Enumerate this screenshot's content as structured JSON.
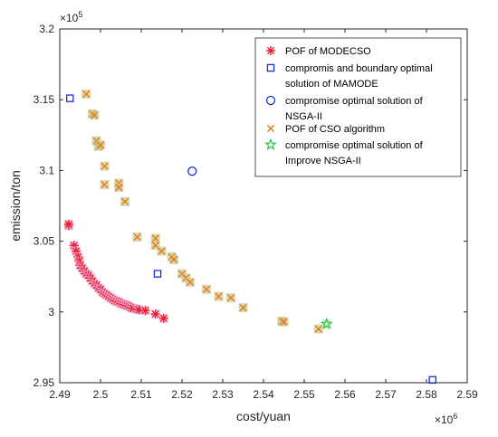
{
  "chart_data": {
    "type": "scatter",
    "title": "",
    "xlabel": "cost/yuan",
    "ylabel": "emission/ton",
    "x_multiplier_label": "×10^6",
    "y_multiplier_label": "×10^5",
    "x_exponent_base": "×10",
    "x_exponent_power": "6",
    "y_exponent_base": "×10",
    "y_exponent_power": "5",
    "xlim": [
      2.49,
      2.59
    ],
    "ylim": [
      2.95,
      3.2
    ],
    "x_ticks": [
      2.49,
      2.5,
      2.51,
      2.52,
      2.53,
      2.54,
      2.55,
      2.56,
      2.57,
      2.58,
      2.59
    ],
    "x_tick_labels": [
      "2.49",
      "2.5",
      "2.51",
      "2.52",
      "2.53",
      "2.54",
      "2.55",
      "2.56",
      "2.57",
      "2.58",
      "2.59"
    ],
    "y_ticks": [
      2.95,
      3.0,
      3.05,
      3.1,
      3.15,
      3.2
    ],
    "y_tick_labels": [
      "2.95",
      "3",
      "3.05",
      "3.1",
      "3.15",
      "3.2"
    ],
    "grid": false,
    "legend_position": "top-right",
    "series": [
      {
        "name": "POF of MODECSO",
        "marker": "asterisk",
        "color": "#e8202a",
        "highlight": "#f0b8e8",
        "points": [
          [
            2.4922,
            3.061
          ],
          [
            2.4922,
            3.062
          ],
          [
            2.4935,
            3.047
          ],
          [
            2.494,
            3.043
          ],
          [
            2.4945,
            3.039
          ],
          [
            2.4948,
            3.036
          ],
          [
            2.495,
            3.033
          ],
          [
            2.4955,
            3.031
          ],
          [
            2.496,
            3.029
          ],
          [
            2.4965,
            3.027
          ],
          [
            2.497,
            3.026
          ],
          [
            2.4975,
            3.024
          ],
          [
            2.498,
            3.022
          ],
          [
            2.4985,
            3.02
          ],
          [
            2.499,
            3.019
          ],
          [
            2.4995,
            3.017
          ],
          [
            2.5,
            3.016
          ],
          [
            2.5005,
            3.014
          ],
          [
            2.501,
            3.013
          ],
          [
            2.5015,
            3.012
          ],
          [
            2.502,
            3.011
          ],
          [
            2.5025,
            3.01
          ],
          [
            2.503,
            3.009
          ],
          [
            2.5035,
            3.008
          ],
          [
            2.504,
            3.0075
          ],
          [
            2.5045,
            3.007
          ],
          [
            2.505,
            3.006
          ],
          [
            2.5055,
            3.0055
          ],
          [
            2.506,
            3.005
          ],
          [
            2.5065,
            3.0045
          ],
          [
            2.507,
            3.004
          ],
          [
            2.5075,
            3.003
          ],
          [
            2.508,
            3.0025
          ],
          [
            2.509,
            3.002
          ],
          [
            2.5095,
            3.0015
          ],
          [
            2.511,
            3.001
          ],
          [
            2.5135,
            2.9985
          ],
          [
            2.5155,
            2.9955
          ]
        ]
      },
      {
        "name": "compromis  and boundary optimal solution of MAMODE",
        "marker": "square",
        "color": "#1c2fd6",
        "points": [
          [
            2.4925,
            3.151
          ],
          [
            2.514,
            3.027
          ],
          [
            2.5815,
            2.952
          ]
        ]
      },
      {
        "name": "compromise optimal solution of NSGA-II",
        "marker": "circle",
        "color": "#1c2fd6",
        "points": [
          [
            2.5225,
            3.0995
          ]
        ]
      },
      {
        "name": "POF of CSO algorithm",
        "marker": "x",
        "color": "#e97a1b",
        "highlight": "#c8c890",
        "points": [
          [
            2.4965,
            3.154
          ],
          [
            2.498,
            3.14
          ],
          [
            2.4985,
            3.139
          ],
          [
            2.499,
            3.121
          ],
          [
            2.4995,
            3.117
          ],
          [
            2.5,
            3.118
          ],
          [
            2.501,
            3.103
          ],
          [
            2.501,
            3.09
          ],
          [
            2.5045,
            3.091
          ],
          [
            2.5045,
            3.088
          ],
          [
            2.506,
            3.078
          ],
          [
            2.509,
            3.053
          ],
          [
            2.5135,
            3.052
          ],
          [
            2.5135,
            3.047
          ],
          [
            2.515,
            3.043
          ],
          [
            2.5175,
            3.039
          ],
          [
            2.518,
            3.037
          ],
          [
            2.52,
            3.027
          ],
          [
            2.521,
            3.024
          ],
          [
            2.522,
            3.021
          ],
          [
            2.526,
            3.016
          ],
          [
            2.529,
            3.011
          ],
          [
            2.532,
            3.01
          ],
          [
            2.535,
            3.003
          ],
          [
            2.5445,
            2.9935
          ],
          [
            2.545,
            2.993
          ],
          [
            2.5535,
            2.988
          ]
        ]
      },
      {
        "name": "compromise optimal solution of Improve NSGA-II",
        "marker": "star",
        "color": "#22c83a",
        "highlight": "#c8e8b8",
        "points": [
          [
            2.5555,
            2.9915
          ]
        ]
      }
    ],
    "legend": [
      {
        "lines": [
          "POF of MODECSO"
        ]
      },
      {
        "lines": [
          "compromis  and boundary optimal",
          "solution of MAMODE"
        ]
      },
      {
        "lines": [
          "compromise optimal solution of",
          "NSGA-II"
        ]
      },
      {
        "lines": [
          "POF of CSO algorithm"
        ]
      },
      {
        "lines": [
          " compromise optimal solution of",
          "Improve NSGA-II"
        ]
      }
    ]
  }
}
